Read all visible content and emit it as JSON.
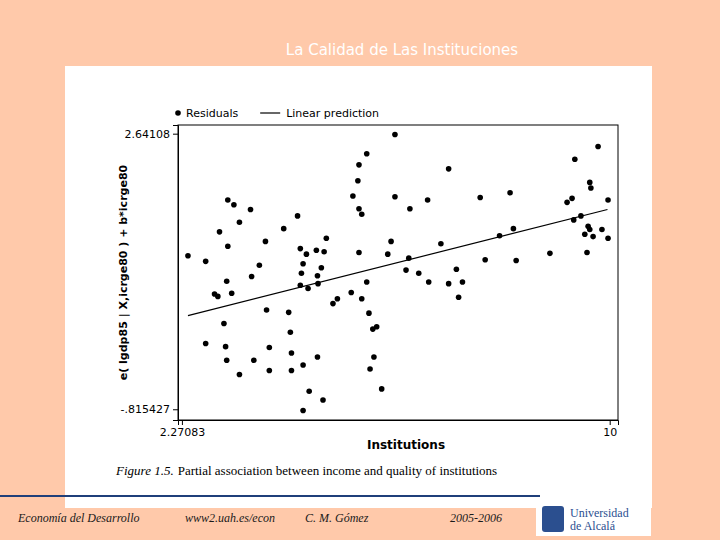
{
  "slide": {
    "title": "La Calidad de Las Instituciones",
    "footer": [
      "Economía del Desarrollo",
      "www2.uah.es/econ",
      "C. M. Gómez",
      "2005-2006"
    ],
    "logo": [
      "Universidad",
      "de Alcalá"
    ]
  },
  "chart_data": {
    "type": "scatter",
    "caption": {
      "label": "Figure 1.5.",
      "text": "Partial association between income and quality of institutions"
    },
    "xlabel": "Institutions",
    "ylabel": "e( lgdp85 | X,icrge80 ) + b*icrge80",
    "xlim": [
      2.2,
      10.15
    ],
    "ylim": [
      -0.95,
      2.75
    ],
    "xticks": [
      2.27083,
      10
    ],
    "yticks": [
      {
        "value": -0.815427,
        "label": "-.815427"
      },
      2.64108
    ],
    "legend": "top",
    "series": [
      {
        "name": "Residuals",
        "type": "scatter",
        "marker": "circle",
        "color": "#000000",
        "x": [
          2.38,
          2.7,
          2.7,
          2.86,
          2.95,
          2.92,
          3.03,
          3.08,
          3.06,
          3.1,
          3.08,
          3.1,
          3.17,
          3.21,
          3.31,
          3.31,
          3.51,
          3.57,
          3.53,
          3.67,
          3.78,
          3.8,
          3.85,
          3.85,
          4.11,
          4.2,
          4.23,
          4.25,
          4.25,
          4.36,
          4.41,
          4.41,
          4.43,
          4.46,
          4.52,
          4.55,
          4.46,
          4.46,
          4.57,
          4.72,
          4.7,
          4.72,
          4.73,
          4.82,
          4.84,
          4.79,
          4.88,
          5.0,
          5.08,
          5.33,
          5.36,
          5.45,
          5.47,
          5.47,
          5.52,
          5.61,
          5.47,
          5.52,
          5.61,
          5.65,
          5.72,
          5.79,
          5.74,
          5.67,
          5.88,
          6.05,
          6.12,
          6.12,
          5.99,
          6.32,
          6.37,
          6.39,
          6.55,
          6.71,
          6.73,
          6.95,
          7.09,
          7.09,
          7.23,
          7.27,
          7.34,
          7.66,
          7.75,
          8.01,
          8.2,
          8.26,
          8.31,
          8.92,
          9.23,
          9.32,
          9.35,
          9.37,
          9.48,
          9.55,
          9.59,
          9.61,
          9.64,
          9.66,
          9.64,
          9.7,
          9.79,
          9.86,
          9.97,
          9.97
        ],
        "values": [
          1.11,
          1.04,
          0.01,
          0.63,
          1.41,
          0.6,
          0.26,
          0.79,
          -0.03,
          1.81,
          -0.2,
          1.23,
          0.64,
          1.75,
          -0.38,
          1.53,
          1.69,
          -0.2,
          0.85,
          0.99,
          1.29,
          0.43,
          -0.04,
          -0.33,
          1.45,
          0.4,
          0.15,
          -0.11,
          -0.33,
          1.61,
          1.2,
          0.74,
          0.89,
          1.01,
          1.13,
          0.7,
          -0.83,
          -0.26,
          -0.59,
          -0.16,
          1.18,
          0.86,
          0.76,
          -0.7,
          1.16,
          0.96,
          1.33,
          0.51,
          0.57,
          0.65,
          1.86,
          2.05,
          1.7,
          2.25,
          1.63,
          2.39,
          1.15,
          0.57,
          0.78,
          0.39,
          0.19,
          0.22,
          -0.16,
          -0.31,
          -0.56,
          1.29,
          1.85,
          2.63,
          1.13,
          0.93,
          1.08,
          1.7,
          0.89,
          1.81,
          0.78,
          1.26,
          2.2,
          0.76,
          0.94,
          0.59,
          0.78,
          1.84,
          1.06,
          1.36,
          1.9,
          1.45,
          1.05,
          1.14,
          1.78,
          1.83,
          1.56,
          2.32,
          1.61,
          1.38,
          1.15,
          1.48,
          2.03,
          1.96,
          1.44,
          1.35,
          2.48,
          1.44,
          1.81,
          1.33
        ]
      },
      {
        "name": "Linear prediction",
        "type": "line",
        "line_style": "solid",
        "color": "#000000",
        "x": [
          2.38,
          9.96
        ],
        "values": [
          0.36,
          1.69
        ]
      }
    ]
  }
}
